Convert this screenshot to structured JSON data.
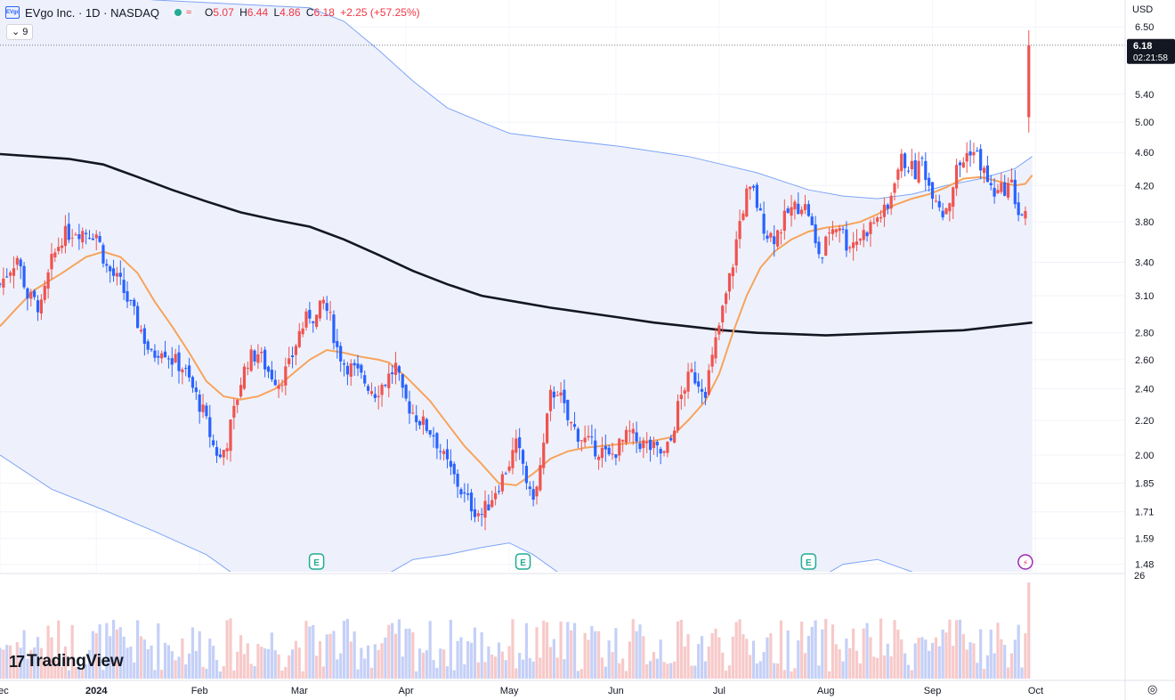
{
  "header": {
    "symbol_title": "EVgo Inc. · 1D · NASDAQ",
    "logo_text": "EVgo",
    "open_label": "O",
    "open_value": "5.07",
    "high_label": "H",
    "high_value": "6.44",
    "low_label": "L",
    "low_value": "4.86",
    "close_label": "C",
    "close_value": "6.18",
    "change": "+2.25 (+57.25%)",
    "interval_toggle": "9"
  },
  "currency": "USD",
  "last_price_label": {
    "price": "6.18",
    "countdown": "02:21:58"
  },
  "branding": {
    "logo_text": "TradingView"
  },
  "colors": {
    "up": "#ef5350",
    "down": "#2962ff",
    "up_vol": "#f7c9c9",
    "down_vol": "#c5d0f7",
    "ma_slow": "#131722",
    "ma_fast": "#f7a35c",
    "band": "#7ea4f7",
    "band_fill": "#eef1fb",
    "earnings": "#22ab94",
    "dividend": "#9c27b0"
  },
  "chart_data": {
    "type": "candlestick",
    "symbol": "EVgo Inc.",
    "interval": "1D",
    "exchange": "NASDAQ",
    "scale": "log",
    "y_ticks": [
      "6.50",
      "5.40",
      "5.00",
      "4.60",
      "4.20",
      "3.80",
      "3.40",
      "3.10",
      "2.80",
      "2.60",
      "2.40",
      "2.20",
      "2.00",
      "1.85",
      "1.71",
      "1.59",
      "1.48"
    ],
    "x_ticks": [
      "Dec",
      "2024",
      "Feb",
      "Mar",
      "Apr",
      "May",
      "Jun",
      "Jul",
      "Aug",
      "Sep",
      "Oct"
    ],
    "x_tick_days": [
      0,
      28,
      58,
      87,
      118,
      148,
      179,
      209,
      240,
      271,
      301
    ],
    "ylim": [
      1.45,
      7.0
    ],
    "xlim": [
      0,
      327
    ],
    "volume_axis_label": "26",
    "events": [
      {
        "type": "earnings",
        "label": "E",
        "day": 92
      },
      {
        "type": "earnings",
        "label": "E",
        "day": 152
      },
      {
        "type": "earnings",
        "label": "E",
        "day": 235
      },
      {
        "type": "dividend",
        "label": "⚡",
        "day": 298
      }
    ],
    "anchors": [
      [
        0,
        3.2
      ],
      [
        3,
        3.35
      ],
      [
        5,
        3.45
      ],
      [
        8,
        3.1
      ],
      [
        12,
        3.0
      ],
      [
        15,
        3.4
      ],
      [
        18,
        3.65
      ],
      [
        22,
        3.72
      ],
      [
        25,
        3.7
      ],
      [
        28,
        3.68
      ],
      [
        31,
        3.35
      ],
      [
        35,
        3.2
      ],
      [
        38,
        3.0
      ],
      [
        41,
        2.82
      ],
      [
        44,
        2.62
      ],
      [
        47,
        2.7
      ],
      [
        50,
        2.6
      ],
      [
        53,
        2.55
      ],
      [
        56,
        2.4
      ],
      [
        59,
        2.25
      ],
      [
        62,
        2.05
      ],
      [
        64,
        1.98
      ],
      [
        66,
        2.08
      ],
      [
        68,
        2.25
      ],
      [
        70,
        2.45
      ],
      [
        72,
        2.6
      ],
      [
        75,
        2.65
      ],
      [
        78,
        2.52
      ],
      [
        81,
        2.45
      ],
      [
        84,
        2.55
      ],
      [
        87,
        2.8
      ],
      [
        90,
        2.95
      ],
      [
        92,
        2.92
      ],
      [
        94,
        3.05
      ],
      [
        96,
        2.9
      ],
      [
        98,
        2.68
      ],
      [
        100,
        2.58
      ],
      [
        103,
        2.52
      ],
      [
        106,
        2.45
      ],
      [
        109,
        2.38
      ],
      [
        112,
        2.45
      ],
      [
        115,
        2.55
      ],
      [
        117,
        2.35
      ],
      [
        120,
        2.25
      ],
      [
        123,
        2.18
      ],
      [
        126,
        2.12
      ],
      [
        129,
        1.98
      ],
      [
        132,
        1.88
      ],
      [
        135,
        1.78
      ],
      [
        138,
        1.72
      ],
      [
        140,
        1.7
      ],
      [
        142,
        1.75
      ],
      [
        144,
        1.82
      ],
      [
        146,
        1.88
      ],
      [
        148,
        1.96
      ],
      [
        150,
        2.05
      ],
      [
        152,
        1.95
      ],
      [
        154,
        1.78
      ],
      [
        156,
        1.82
      ],
      [
        158,
        2.05
      ],
      [
        160,
        2.35
      ],
      [
        162,
        2.4
      ],
      [
        165,
        2.2
      ],
      [
        168,
        2.12
      ],
      [
        170,
        2.08
      ],
      [
        172,
        2.05
      ],
      [
        175,
        2.02
      ],
      [
        177,
        1.98
      ],
      [
        180,
        2.05
      ],
      [
        183,
        2.12
      ],
      [
        185,
        2.08
      ],
      [
        188,
        2.05
      ],
      [
        191,
        2.02
      ],
      [
        193,
        2.0
      ],
      [
        195,
        2.08
      ],
      [
        197,
        2.28
      ],
      [
        199,
        2.42
      ],
      [
        201,
        2.5
      ],
      [
        203,
        2.45
      ],
      [
        205,
        2.4
      ],
      [
        207,
        2.6
      ],
      [
        209,
        2.85
      ],
      [
        211,
        3.1
      ],
      [
        213,
        3.4
      ],
      [
        215,
        3.8
      ],
      [
        217,
        4.1
      ],
      [
        219,
        4.12
      ],
      [
        221,
        3.85
      ],
      [
        223,
        3.68
      ],
      [
        225,
        3.65
      ],
      [
        227,
        3.75
      ],
      [
        229,
        3.9
      ],
      [
        231,
        3.95
      ],
      [
        233,
        4.0
      ],
      [
        235,
        3.9
      ],
      [
        237,
        3.55
      ],
      [
        239,
        3.45
      ],
      [
        241,
        3.72
      ],
      [
        244,
        3.78
      ],
      [
        246,
        3.58
      ],
      [
        248,
        3.6
      ],
      [
        250,
        3.65
      ],
      [
        252,
        3.72
      ],
      [
        254,
        3.8
      ],
      [
        256,
        3.88
      ],
      [
        258,
        3.92
      ],
      [
        260,
        4.3
      ],
      [
        262,
        4.5
      ],
      [
        264,
        4.45
      ],
      [
        266,
        4.35
      ],
      [
        268,
        4.5
      ],
      [
        270,
        4.2
      ],
      [
        272,
        4.1
      ],
      [
        274,
        3.9
      ],
      [
        276,
        4.05
      ],
      [
        278,
        4.38
      ],
      [
        280,
        4.5
      ],
      [
        282,
        4.65
      ],
      [
        284,
        4.55
      ],
      [
        286,
        4.35
      ],
      [
        288,
        4.15
      ],
      [
        290,
        4.1
      ],
      [
        292,
        4.18
      ],
      [
        294,
        4.2
      ],
      [
        296,
        3.9
      ],
      [
        298,
        3.85
      ]
    ],
    "candles_note": "",
    "last_candle": {
      "day": 299,
      "open": 5.07,
      "high": 6.44,
      "low": 4.86,
      "close": 6.18
    },
    "ma_fast": [
      [
        0,
        2.85
      ],
      [
        5,
        3.0
      ],
      [
        10,
        3.15
      ],
      [
        18,
        3.3
      ],
      [
        25,
        3.45
      ],
      [
        30,
        3.5
      ],
      [
        35,
        3.45
      ],
      [
        40,
        3.3
      ],
      [
        45,
        3.05
      ],
      [
        50,
        2.85
      ],
      [
        55,
        2.65
      ],
      [
        60,
        2.45
      ],
      [
        65,
        2.35
      ],
      [
        70,
        2.33
      ],
      [
        75,
        2.35
      ],
      [
        80,
        2.4
      ],
      [
        85,
        2.5
      ],
      [
        90,
        2.6
      ],
      [
        95,
        2.67
      ],
      [
        100,
        2.65
      ],
      [
        105,
        2.62
      ],
      [
        110,
        2.6
      ],
      [
        113,
        2.58
      ],
      [
        118,
        2.48
      ],
      [
        125,
        2.32
      ],
      [
        130,
        2.18
      ],
      [
        135,
        2.05
      ],
      [
        140,
        1.95
      ],
      [
        145,
        1.85
      ],
      [
        150,
        1.84
      ],
      [
        155,
        1.9
      ],
      [
        160,
        1.98
      ],
      [
        165,
        2.02
      ],
      [
        170,
        2.04
      ],
      [
        175,
        2.05
      ],
      [
        180,
        2.06
      ],
      [
        185,
        2.07
      ],
      [
        190,
        2.08
      ],
      [
        195,
        2.1
      ],
      [
        200,
        2.2
      ],
      [
        205,
        2.32
      ],
      [
        209,
        2.5
      ],
      [
        213,
        2.8
      ],
      [
        217,
        3.1
      ],
      [
        221,
        3.35
      ],
      [
        225,
        3.5
      ],
      [
        230,
        3.62
      ],
      [
        235,
        3.7
      ],
      [
        240,
        3.74
      ],
      [
        245,
        3.76
      ],
      [
        250,
        3.8
      ],
      [
        255,
        3.88
      ],
      [
        260,
        3.98
      ],
      [
        265,
        4.05
      ],
      [
        270,
        4.1
      ],
      [
        275,
        4.18
      ],
      [
        280,
        4.28
      ],
      [
        285,
        4.3
      ],
      [
        290,
        4.25
      ],
      [
        295,
        4.2
      ],
      [
        298,
        4.22
      ],
      [
        300,
        4.32
      ]
    ],
    "ma_slow": [
      [
        0,
        4.58
      ],
      [
        10,
        4.55
      ],
      [
        20,
        4.52
      ],
      [
        30,
        4.45
      ],
      [
        40,
        4.3
      ],
      [
        50,
        4.15
      ],
      [
        60,
        4.02
      ],
      [
        70,
        3.9
      ],
      [
        80,
        3.82
      ],
      [
        90,
        3.75
      ],
      [
        100,
        3.62
      ],
      [
        110,
        3.47
      ],
      [
        120,
        3.32
      ],
      [
        130,
        3.2
      ],
      [
        140,
        3.1
      ],
      [
        150,
        3.05
      ],
      [
        160,
        3.0
      ],
      [
        170,
        2.96
      ],
      [
        180,
        2.92
      ],
      [
        190,
        2.88
      ],
      [
        200,
        2.85
      ],
      [
        210,
        2.82
      ],
      [
        220,
        2.8
      ],
      [
        230,
        2.79
      ],
      [
        240,
        2.78
      ],
      [
        250,
        2.79
      ],
      [
        260,
        2.8
      ],
      [
        270,
        2.81
      ],
      [
        280,
        2.82
      ],
      [
        290,
        2.85
      ],
      [
        300,
        2.88
      ]
    ],
    "band_upper": [
      [
        0,
        7.6
      ],
      [
        15,
        7.4
      ],
      [
        30,
        7.1
      ],
      [
        45,
        7.0
      ],
      [
        60,
        6.95
      ],
      [
        75,
        6.9
      ],
      [
        90,
        6.85
      ],
      [
        100,
        6.6
      ],
      [
        110,
        6.1
      ],
      [
        120,
        5.6
      ],
      [
        130,
        5.2
      ],
      [
        140,
        5.0
      ],
      [
        148,
        4.85
      ],
      [
        160,
        4.78
      ],
      [
        180,
        4.68
      ],
      [
        200,
        4.55
      ],
      [
        210,
        4.45
      ],
      [
        220,
        4.35
      ],
      [
        235,
        4.15
      ],
      [
        245,
        4.08
      ],
      [
        255,
        4.05
      ],
      [
        265,
        4.1
      ],
      [
        275,
        4.2
      ],
      [
        285,
        4.28
      ],
      [
        295,
        4.4
      ],
      [
        300,
        4.55
      ]
    ],
    "band_lower": [
      [
        0,
        2.0
      ],
      [
        15,
        1.82
      ],
      [
        30,
        1.72
      ],
      [
        45,
        1.62
      ],
      [
        60,
        1.52
      ],
      [
        70,
        1.42
      ],
      [
        80,
        1.35
      ],
      [
        90,
        1.3
      ],
      [
        100,
        1.32
      ],
      [
        110,
        1.42
      ],
      [
        120,
        1.5
      ],
      [
        130,
        1.52
      ],
      [
        140,
        1.55
      ],
      [
        148,
        1.57
      ],
      [
        155,
        1.52
      ],
      [
        165,
        1.42
      ],
      [
        180,
        1.32
      ],
      [
        200,
        1.25
      ],
      [
        220,
        1.28
      ],
      [
        235,
        1.4
      ],
      [
        245,
        1.48
      ],
      [
        255,
        1.5
      ],
      [
        265,
        1.45
      ],
      [
        275,
        1.38
      ],
      [
        285,
        1.3
      ],
      [
        300,
        1.25
      ]
    ]
  }
}
